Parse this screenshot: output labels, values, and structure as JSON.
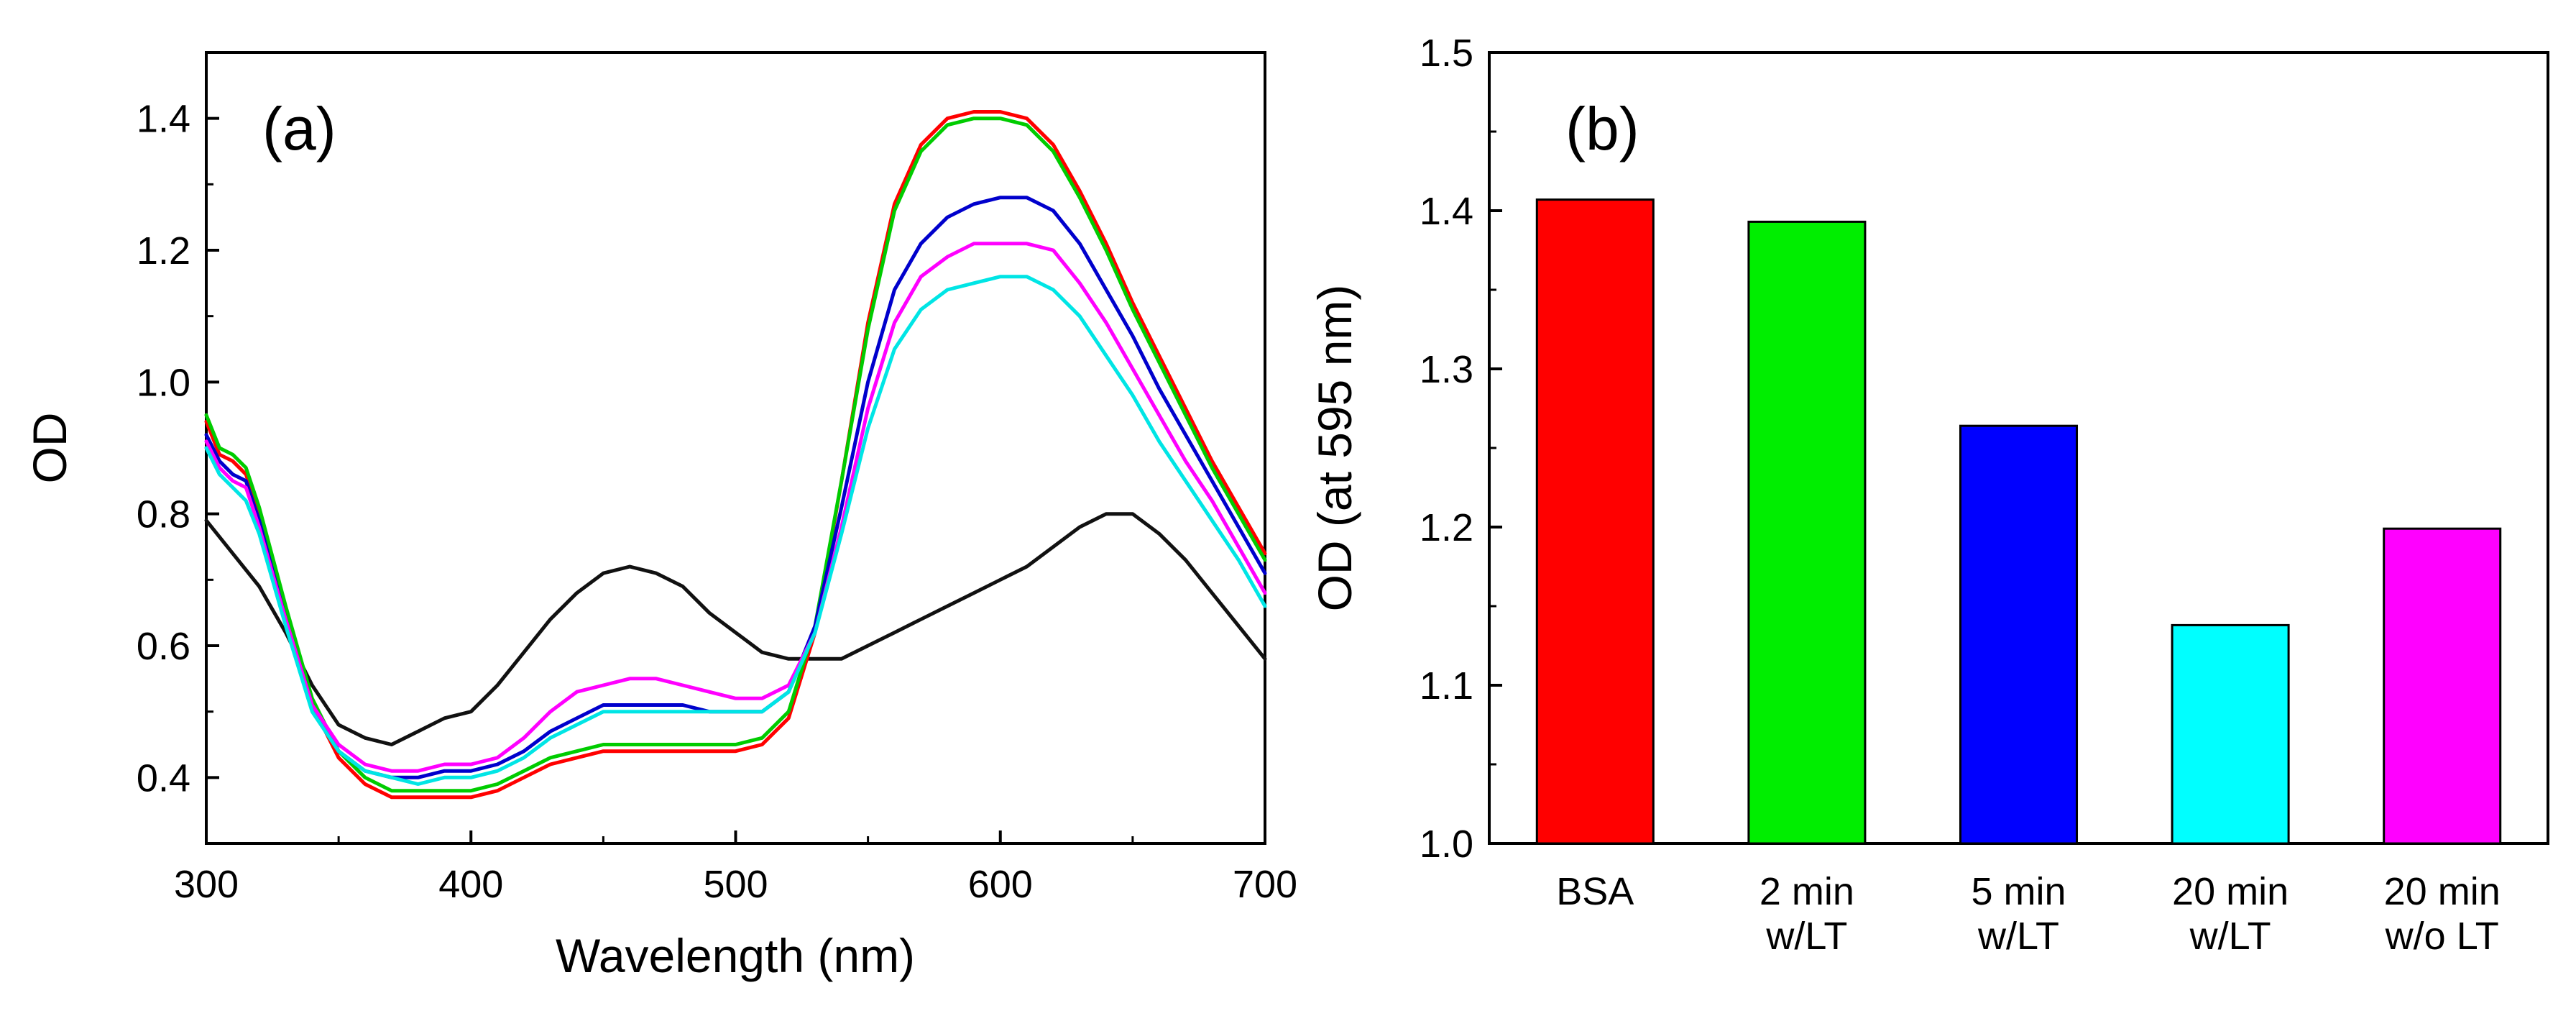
{
  "figure": {
    "panel_a_label": "(a)",
    "panel_b_label": "(b)"
  },
  "colors": {
    "red": "#ff0000",
    "green": "#00cc00",
    "blue": "#0000cc",
    "magenta": "#ff00ff",
    "cyan": "#00e5e5",
    "black": "#111111"
  },
  "chart_data": [
    {
      "panel": "(a)",
      "type": "line",
      "title": "",
      "xlabel": "Wavelength (nm)",
      "ylabel": "OD",
      "xlim": [
        300,
        700
      ],
      "ylim": [
        0.3,
        1.5
      ],
      "xticks": [
        300,
        400,
        500,
        600,
        700
      ],
      "xtick_labels": [
        "300",
        "400",
        "500",
        "600",
        "700"
      ],
      "yticks": [
        0.4,
        0.6,
        0.8,
        1.0,
        1.2,
        1.4
      ],
      "ytick_labels": [
        "0.4",
        "0.6",
        "0.8",
        "1.0",
        "1.2",
        "1.4"
      ],
      "series": [
        {
          "name": "black",
          "color": "#111111",
          "x": [
            300,
            310,
            320,
            330,
            340,
            350,
            360,
            370,
            380,
            390,
            400,
            410,
            420,
            430,
            440,
            450,
            460,
            470,
            480,
            490,
            500,
            510,
            520,
            530,
            540,
            550,
            560,
            570,
            580,
            590,
            600,
            610,
            620,
            630,
            640,
            650,
            660,
            670,
            680,
            690,
            700
          ],
          "y": [
            0.79,
            0.74,
            0.69,
            0.62,
            0.54,
            0.48,
            0.46,
            0.45,
            0.47,
            0.49,
            0.5,
            0.54,
            0.59,
            0.64,
            0.68,
            0.71,
            0.72,
            0.71,
            0.69,
            0.65,
            0.62,
            0.59,
            0.58,
            0.58,
            0.58,
            0.6,
            0.62,
            0.64,
            0.66,
            0.68,
            0.7,
            0.72,
            0.75,
            0.78,
            0.8,
            0.8,
            0.77,
            0.73,
            0.68,
            0.63,
            0.58
          ]
        },
        {
          "name": "red",
          "color": "#ff0000",
          "x": [
            300,
            305,
            310,
            315,
            320,
            330,
            340,
            350,
            360,
            370,
            380,
            390,
            400,
            410,
            420,
            430,
            440,
            450,
            460,
            470,
            480,
            490,
            500,
            510,
            520,
            530,
            540,
            550,
            560,
            570,
            580,
            590,
            600,
            610,
            620,
            630,
            640,
            650,
            660,
            670,
            680,
            690,
            700
          ],
          "y": [
            0.94,
            0.89,
            0.88,
            0.86,
            0.8,
            0.65,
            0.51,
            0.43,
            0.39,
            0.37,
            0.37,
            0.37,
            0.37,
            0.38,
            0.4,
            0.42,
            0.43,
            0.44,
            0.44,
            0.44,
            0.44,
            0.44,
            0.44,
            0.45,
            0.49,
            0.62,
            0.85,
            1.09,
            1.27,
            1.36,
            1.4,
            1.41,
            1.41,
            1.4,
            1.36,
            1.29,
            1.21,
            1.12,
            1.04,
            0.96,
            0.88,
            0.81,
            0.74
          ]
        },
        {
          "name": "green",
          "color": "#00cc00",
          "x": [
            300,
            305,
            310,
            315,
            320,
            330,
            340,
            350,
            360,
            370,
            380,
            390,
            400,
            410,
            420,
            430,
            440,
            450,
            460,
            470,
            480,
            490,
            500,
            510,
            520,
            530,
            540,
            550,
            560,
            570,
            580,
            590,
            600,
            610,
            620,
            630,
            640,
            650,
            660,
            670,
            680,
            690,
            700
          ],
          "y": [
            0.95,
            0.9,
            0.89,
            0.87,
            0.81,
            0.66,
            0.52,
            0.44,
            0.4,
            0.38,
            0.38,
            0.38,
            0.38,
            0.39,
            0.41,
            0.43,
            0.44,
            0.45,
            0.45,
            0.45,
            0.45,
            0.45,
            0.45,
            0.46,
            0.5,
            0.63,
            0.85,
            1.08,
            1.26,
            1.35,
            1.39,
            1.4,
            1.4,
            1.39,
            1.35,
            1.28,
            1.2,
            1.11,
            1.03,
            0.95,
            0.87,
            0.8,
            0.73
          ]
        },
        {
          "name": "blue",
          "color": "#0000cc",
          "x": [
            300,
            305,
            310,
            315,
            320,
            330,
            340,
            350,
            360,
            370,
            380,
            390,
            400,
            410,
            420,
            430,
            440,
            450,
            460,
            470,
            480,
            490,
            500,
            510,
            520,
            530,
            540,
            550,
            560,
            570,
            580,
            590,
            600,
            610,
            620,
            630,
            640,
            650,
            660,
            670,
            680,
            690,
            700
          ],
          "y": [
            0.92,
            0.88,
            0.86,
            0.85,
            0.79,
            0.64,
            0.51,
            0.44,
            0.41,
            0.4,
            0.4,
            0.41,
            0.41,
            0.42,
            0.44,
            0.47,
            0.49,
            0.51,
            0.51,
            0.51,
            0.51,
            0.5,
            0.5,
            0.5,
            0.53,
            0.63,
            0.81,
            1.0,
            1.14,
            1.21,
            1.25,
            1.27,
            1.28,
            1.28,
            1.26,
            1.21,
            1.14,
            1.07,
            0.99,
            0.92,
            0.85,
            0.78,
            0.71
          ]
        },
        {
          "name": "magenta",
          "color": "#ff00ff",
          "x": [
            300,
            305,
            310,
            315,
            320,
            330,
            340,
            350,
            360,
            370,
            380,
            390,
            400,
            410,
            420,
            430,
            440,
            450,
            460,
            470,
            480,
            490,
            500,
            510,
            520,
            530,
            540,
            550,
            560,
            570,
            580,
            590,
            600,
            610,
            620,
            630,
            640,
            650,
            660,
            670,
            680,
            690,
            700
          ],
          "y": [
            0.91,
            0.87,
            0.85,
            0.84,
            0.78,
            0.64,
            0.51,
            0.45,
            0.42,
            0.41,
            0.41,
            0.42,
            0.42,
            0.43,
            0.46,
            0.5,
            0.53,
            0.54,
            0.55,
            0.55,
            0.54,
            0.53,
            0.52,
            0.52,
            0.54,
            0.62,
            0.78,
            0.96,
            1.09,
            1.16,
            1.19,
            1.21,
            1.21,
            1.21,
            1.2,
            1.15,
            1.09,
            1.02,
            0.95,
            0.88,
            0.82,
            0.75,
            0.68
          ]
        },
        {
          "name": "cyan",
          "color": "#00e5e5",
          "x": [
            300,
            305,
            310,
            315,
            320,
            330,
            340,
            350,
            360,
            370,
            380,
            390,
            400,
            410,
            420,
            430,
            440,
            450,
            460,
            470,
            480,
            490,
            500,
            510,
            520,
            530,
            540,
            550,
            560,
            570,
            580,
            590,
            600,
            610,
            620,
            630,
            640,
            650,
            660,
            670,
            680,
            690,
            700
          ],
          "y": [
            0.9,
            0.86,
            0.84,
            0.82,
            0.77,
            0.63,
            0.5,
            0.44,
            0.41,
            0.4,
            0.39,
            0.4,
            0.4,
            0.41,
            0.43,
            0.46,
            0.48,
            0.5,
            0.5,
            0.5,
            0.5,
            0.5,
            0.5,
            0.5,
            0.53,
            0.62,
            0.77,
            0.93,
            1.05,
            1.11,
            1.14,
            1.15,
            1.16,
            1.16,
            1.14,
            1.1,
            1.04,
            0.98,
            0.91,
            0.85,
            0.79,
            0.73,
            0.66
          ]
        }
      ]
    },
    {
      "panel": "(b)",
      "type": "bar",
      "title": "",
      "xlabel": "",
      "ylabel": "OD (at 595 nm)",
      "ylim": [
        1.0,
        1.5
      ],
      "yticks": [
        1.0,
        1.1,
        1.2,
        1.3,
        1.4,
        1.5
      ],
      "ytick_labels": [
        "1.0",
        "1.1",
        "1.2",
        "1.3",
        "1.4",
        "1.5"
      ],
      "categories": [
        [
          "BSA"
        ],
        [
          "2 min",
          "w/LT"
        ],
        [
          "5 min",
          "w/LT"
        ],
        [
          "20 min",
          "w/LT"
        ],
        [
          "20 min",
          "w/o LT"
        ]
      ],
      "values": [
        1.407,
        1.393,
        1.264,
        1.138,
        1.199
      ],
      "bar_colors": [
        "#ff0000",
        "#00ee00",
        "#0000ff",
        "#00ffff",
        "#ff00ff"
      ]
    }
  ]
}
